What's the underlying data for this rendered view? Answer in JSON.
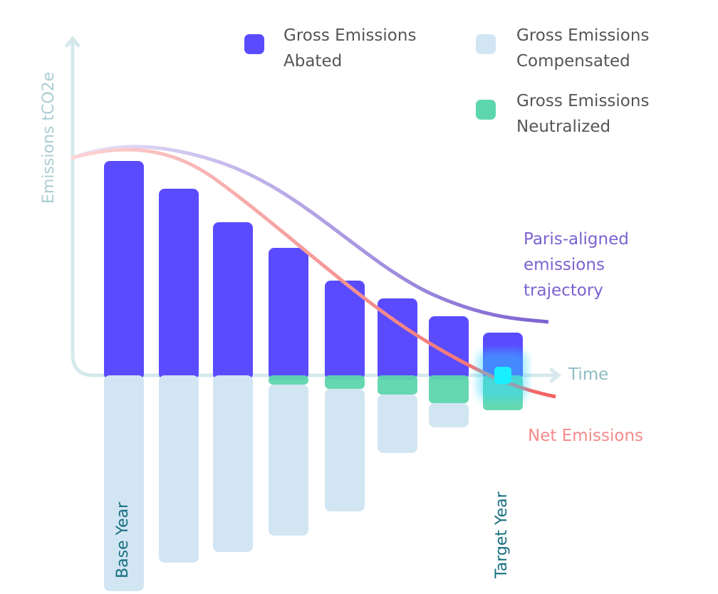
{
  "chart_data": {
    "type": "bar",
    "y_label": "Emissions tCO2e",
    "x_label": "Time",
    "categories": [
      "Base Year",
      null,
      null,
      null,
      null,
      null,
      null,
      "Target Year"
    ],
    "ylim": [
      -307,
      340
    ],
    "series": [
      {
        "name": "Gross Emissions Abated",
        "color": "#5a4bff",
        "values": [
          301,
          262,
          215,
          179,
          133,
          108,
          83,
          60
        ]
      },
      {
        "name": "Gross Emissions Compensated",
        "color": "#d2e5f3",
        "values": [
          -303,
          -263,
          -248,
          -212,
          -172,
          -82,
          -34,
          0
        ]
      },
      {
        "name": "Gross Emissions Neutralized",
        "color": "#5ed6ad",
        "values": [
          0,
          0,
          0,
          -13,
          -19,
          -27,
          -39,
          -49
        ]
      }
    ],
    "annotations": [
      "Paris-aligned emissions trajectory",
      "Net Emissions"
    ]
  }
}
